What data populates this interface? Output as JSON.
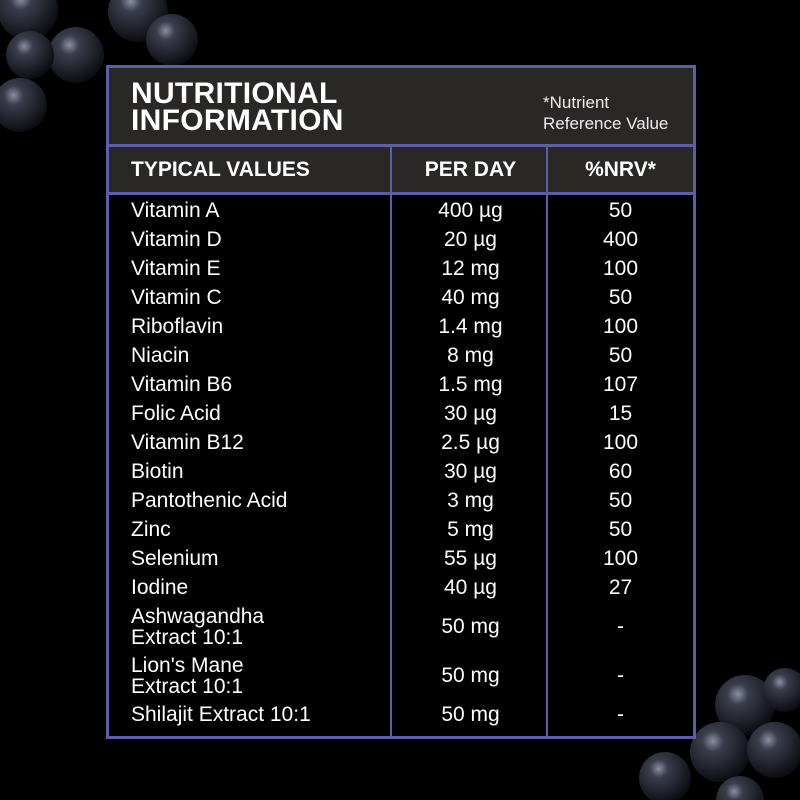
{
  "header": {
    "title": "NUTRITIONAL\nINFORMATION",
    "note": "*Nutrient\nReference Value"
  },
  "table": {
    "columns": [
      "TYPICAL VALUES",
      "PER DAY",
      "%NRV*"
    ],
    "rows": [
      [
        "Vitamin A",
        "400 µg",
        "50"
      ],
      [
        "Vitamin D",
        "20 µg",
        "400"
      ],
      [
        "Vitamin E",
        "12 mg",
        "100"
      ],
      [
        "Vitamin C",
        "40 mg",
        "50"
      ],
      [
        "Riboflavin",
        "1.4 mg",
        "100"
      ],
      [
        "Niacin",
        "8 mg",
        "50"
      ],
      [
        "Vitamin B6",
        "1.5 mg",
        "107"
      ],
      [
        "Folic Acid",
        "30 µg",
        "15"
      ],
      [
        "Vitamin B12",
        "2.5 µg",
        "100"
      ],
      [
        "Biotin",
        "30 µg",
        "60"
      ],
      [
        "Pantothenic Acid",
        "3 mg",
        "50"
      ],
      [
        "Zinc",
        "5 mg",
        "50"
      ],
      [
        "Selenium",
        "55 µg",
        "100"
      ],
      [
        "Iodine",
        "40 µg",
        "27"
      ],
      [
        "Ashwagandha\nExtract 10:1",
        "50 mg",
        "-"
      ],
      [
        "Lion's Mane\nExtract 10:1",
        "50 mg",
        "-"
      ],
      [
        "Shilajit Extract 10:1",
        "50 mg",
        "-"
      ]
    ]
  }
}
